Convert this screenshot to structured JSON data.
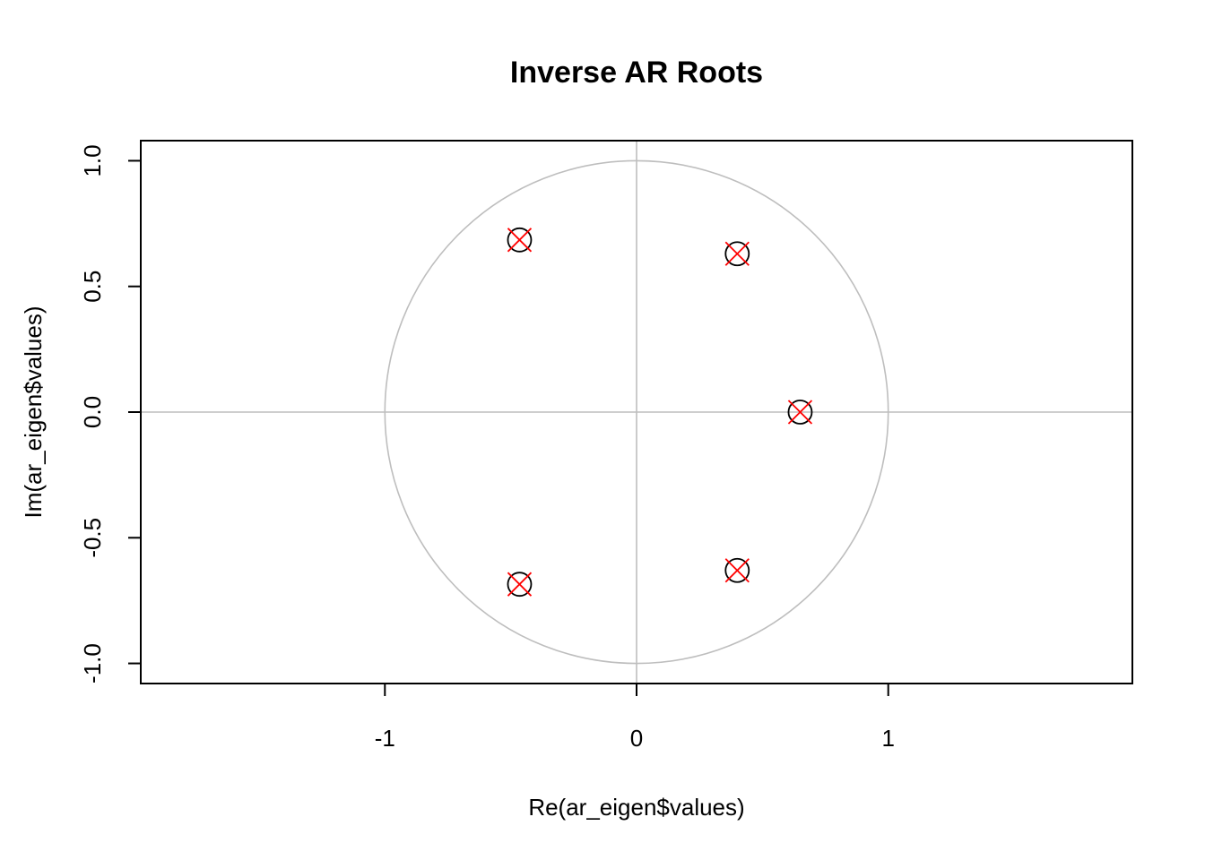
{
  "chart_data": {
    "type": "scatter",
    "title": "Inverse AR Roots",
    "xlabel": "Re(ar_eigen$values)",
    "ylabel": "Im(ar_eigen$values)",
    "xlim": [
      -1.97,
      1.97
    ],
    "ylim": [
      -1.08,
      1.08
    ],
    "x_ticks": [
      {
        "value": -1,
        "label": "-1"
      },
      {
        "value": 0,
        "label": "0"
      },
      {
        "value": 1,
        "label": "1"
      }
    ],
    "y_ticks": [
      {
        "value": -1.0,
        "label": "-1.0"
      },
      {
        "value": -0.5,
        "label": "-0.5"
      },
      {
        "value": 0.0,
        "label": "0.0"
      },
      {
        "value": 0.5,
        "label": "0.5"
      },
      {
        "value": 1.0,
        "label": "1.0"
      }
    ],
    "points": [
      {
        "x": -0.465,
        "y": 0.685
      },
      {
        "x": 0.4,
        "y": 0.63
      },
      {
        "x": 0.65,
        "y": 0.0
      },
      {
        "x": 0.4,
        "y": -0.63
      },
      {
        "x": -0.465,
        "y": -0.685
      }
    ],
    "reference": {
      "unit_circle_radius": 1,
      "hline_y": 0,
      "vline_x": 0
    },
    "grid": false,
    "colors": {
      "circle": "#bebebe",
      "point_circle": "#000000",
      "point_cross": "#ff0000"
    }
  }
}
